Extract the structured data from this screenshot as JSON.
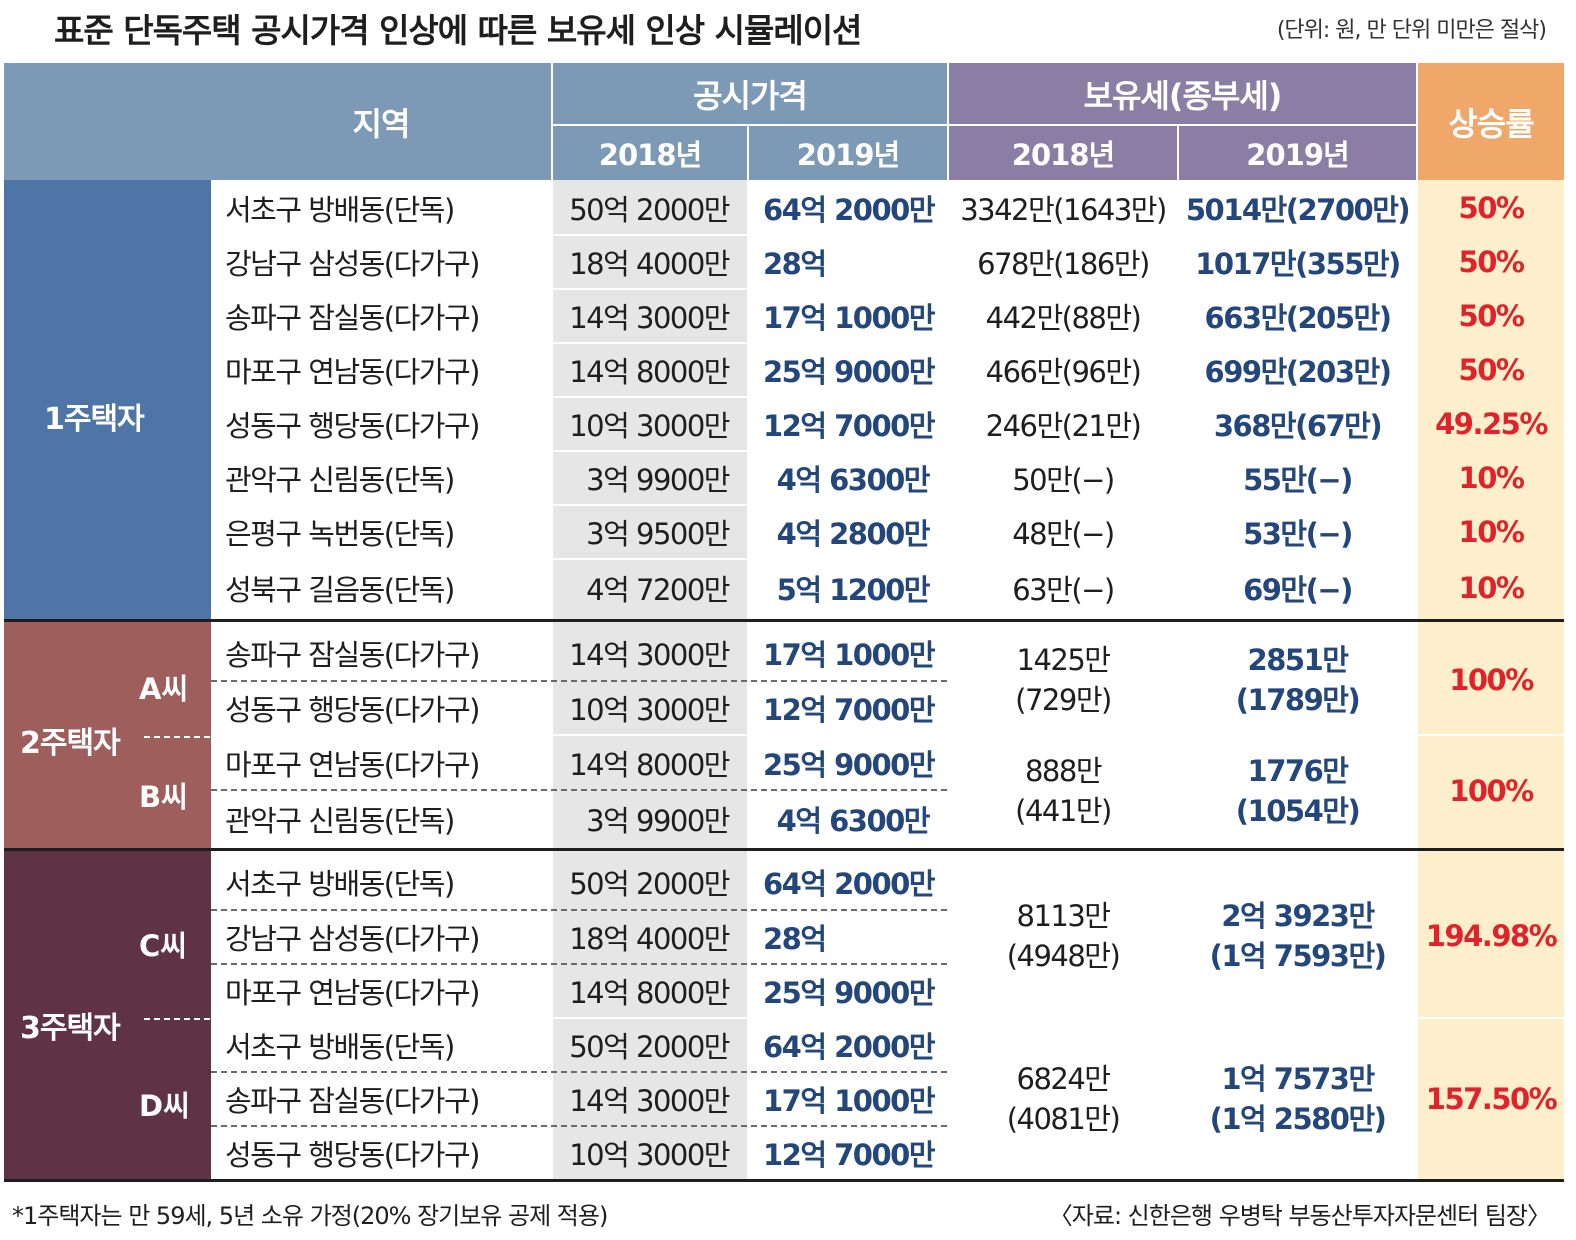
{
  "title": "표준 단독주택 공시가격 인상에 따른 보유세 인상 시뮬레이션",
  "unit_note": "(단위: 원, 만 단위 미만은 절삭)",
  "header": {
    "region": "지역",
    "price": "공시가격",
    "tax": "보유세(종부세)",
    "rate": "상승률",
    "y2018": "2018년",
    "y2019": "2019년"
  },
  "groups": {
    "g1": "1주택자",
    "g2": "2주택자",
    "g3": "3주택자",
    "a": "A씨",
    "b": "B씨",
    "c": "C씨",
    "d": "D씨"
  },
  "rows": [
    {
      "region": "서초구 방배동(단독)",
      "p2018": "50억 2000만",
      "p2019": "64억 2000만",
      "t2018": "3342만(1643만)",
      "t2019": "5014만(2700만)",
      "rate": "50%"
    },
    {
      "region": "강남구 삼성동(다가구)",
      "p2018": "18억 4000만",
      "p2019": "28억",
      "t2018": "678만(186만)",
      "t2019": "1017만(355만)",
      "rate": "50%"
    },
    {
      "region": "송파구 잠실동(다가구)",
      "p2018": "14억 3000만",
      "p2019": "17억 1000만",
      "t2018": "442만(88만)",
      "t2019": "663만(205만)",
      "rate": "50%"
    },
    {
      "region": "마포구 연남동(다가구)",
      "p2018": "14억 8000만",
      "p2019": "25억 9000만",
      "t2018": "466만(96만)",
      "t2019": "699만(203만)",
      "rate": "50%"
    },
    {
      "region": "성동구 행당동(다가구)",
      "p2018": "10억 3000만",
      "p2019": "12억 7000만",
      "t2018": "246만(21만)",
      "t2019": "368만(67만)",
      "rate": "49.25%"
    },
    {
      "region": "관악구 신림동(단독)",
      "p2018": "3억 9900만",
      "p2019": "4억 6300만",
      "t2018": "50만(−)",
      "t2019": "55만(−)",
      "rate": "10%"
    },
    {
      "region": "은평구 녹번동(단독)",
      "p2018": "3억 9500만",
      "p2019": "4억 2800만",
      "t2018": "48만(−)",
      "t2019": "53만(−)",
      "rate": "10%"
    },
    {
      "region": "성북구 길음동(단독)",
      "p2018": "4억 7200만",
      "p2019": "5억 1200만",
      "t2018": "63만(−)",
      "t2019": "69만(−)",
      "rate": "10%"
    },
    {
      "region": "송파구 잠실동(다가구)",
      "p2018": "14억 3000만",
      "p2019": "17억 1000만"
    },
    {
      "region": "성동구 행당동(다가구)",
      "p2018": "10억 3000만",
      "p2019": "12억 7000만"
    },
    {
      "region": "마포구 연남동(다가구)",
      "p2018": "14억 8000만",
      "p2019": "25억 9000만"
    },
    {
      "region": "관악구 신림동(단독)",
      "p2018": "3억 9900만",
      "p2019": "4억 6300만"
    },
    {
      "region": "서초구 방배동(단독)",
      "p2018": "50억 2000만",
      "p2019": "64억 2000만"
    },
    {
      "region": "강남구 삼성동(다가구)",
      "p2018": "18억 4000만",
      "p2019": "28억"
    },
    {
      "region": "마포구 연남동(다가구)",
      "p2018": "14억 8000만",
      "p2019": "25억 9000만"
    },
    {
      "region": "서초구 방배동(단독)",
      "p2018": "50억 2000만",
      "p2019": "64억 2000만"
    },
    {
      "region": "송파구 잠실동(다가구)",
      "p2018": "14억 3000만",
      "p2019": "17억 1000만"
    },
    {
      "region": "성동구 행당동(다가구)",
      "p2018": "10억 3000만",
      "p2019": "12억 7000만"
    }
  ],
  "merged": [
    {
      "t2018_a": "1425만",
      "t2018_b": "(729만)",
      "t2019_a": "2851만",
      "t2019_b": "(1789만)",
      "rate": "100%"
    },
    {
      "t2018_a": "888만",
      "t2018_b": "(441만)",
      "t2019_a": "1776만",
      "t2019_b": "(1054만)",
      "rate": "100%"
    },
    {
      "t2018_a": "8113만",
      "t2018_b": "(4948만)",
      "t2019_a": "2억 3923만",
      "t2019_b": "(1억 7593만)",
      "rate": "194.98%"
    },
    {
      "t2018_a": "6824만",
      "t2018_b": "(4081만)",
      "t2019_a": "1억 7573만",
      "t2019_b": "(1억 2580만)",
      "rate": "157.50%"
    }
  ],
  "footnote": "*1주택자는 만 59세, 5년 소유 가정(20% 장기보유 공제 적용)",
  "source": "〈자료: 신한은행 우병탁 부동산투자자문센터 팀장〉"
}
